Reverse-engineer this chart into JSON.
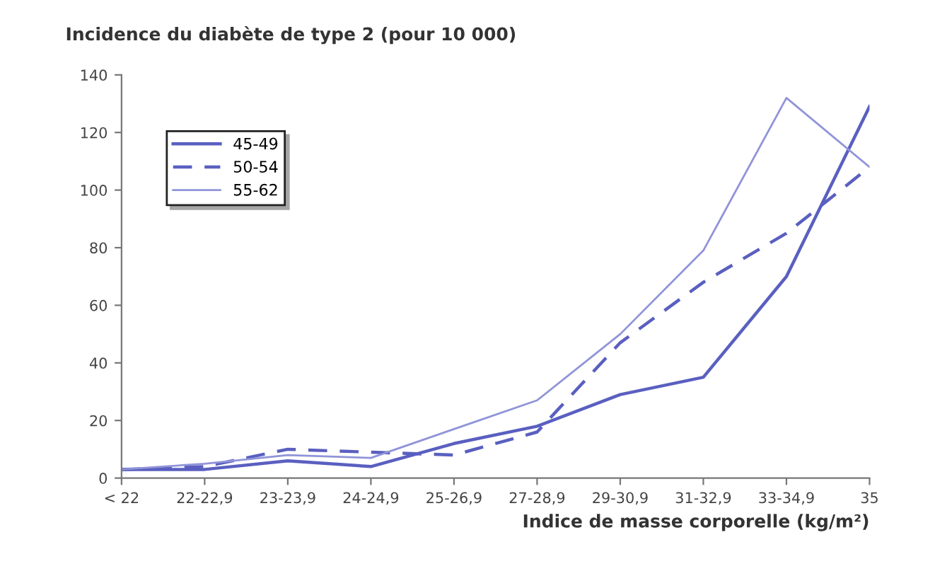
{
  "chart_data": {
    "type": "line",
    "title": "Incidence du diabète de type 2 (pour 10 000)",
    "xlabel": "Indice de masse corporelle (kg/m²)",
    "categories": [
      "< 22",
      "22-22,9",
      "23-23,9",
      "24-24,9",
      "25-26,9",
      "27-28,9",
      "29-30,9",
      "31-32,9",
      "33-34,9",
      "35"
    ],
    "series": [
      {
        "name": "45-49",
        "color": "#5a5fc0",
        "line_style": "solid",
        "values": [
          3,
          3,
          6,
          4,
          12,
          18,
          29,
          35,
          70,
          129
        ]
      },
      {
        "name": "50-54",
        "color": "#5a5fc0",
        "line_style": "dashed",
        "values": [
          3,
          4,
          10,
          9,
          8,
          16,
          47,
          68,
          85,
          108
        ]
      },
      {
        "name": "55-62",
        "color": "#9094d8",
        "line_style": "solid",
        "values": [
          3,
          5,
          8,
          7,
          17,
          27,
          50,
          79,
          132,
          108
        ]
      }
    ],
    "ylim": [
      0,
      140
    ],
    "yticks": [
      0,
      20,
      40,
      60,
      80,
      100,
      120,
      140
    ],
    "grid": false,
    "legend": "top left",
    "marker": "none"
  }
}
